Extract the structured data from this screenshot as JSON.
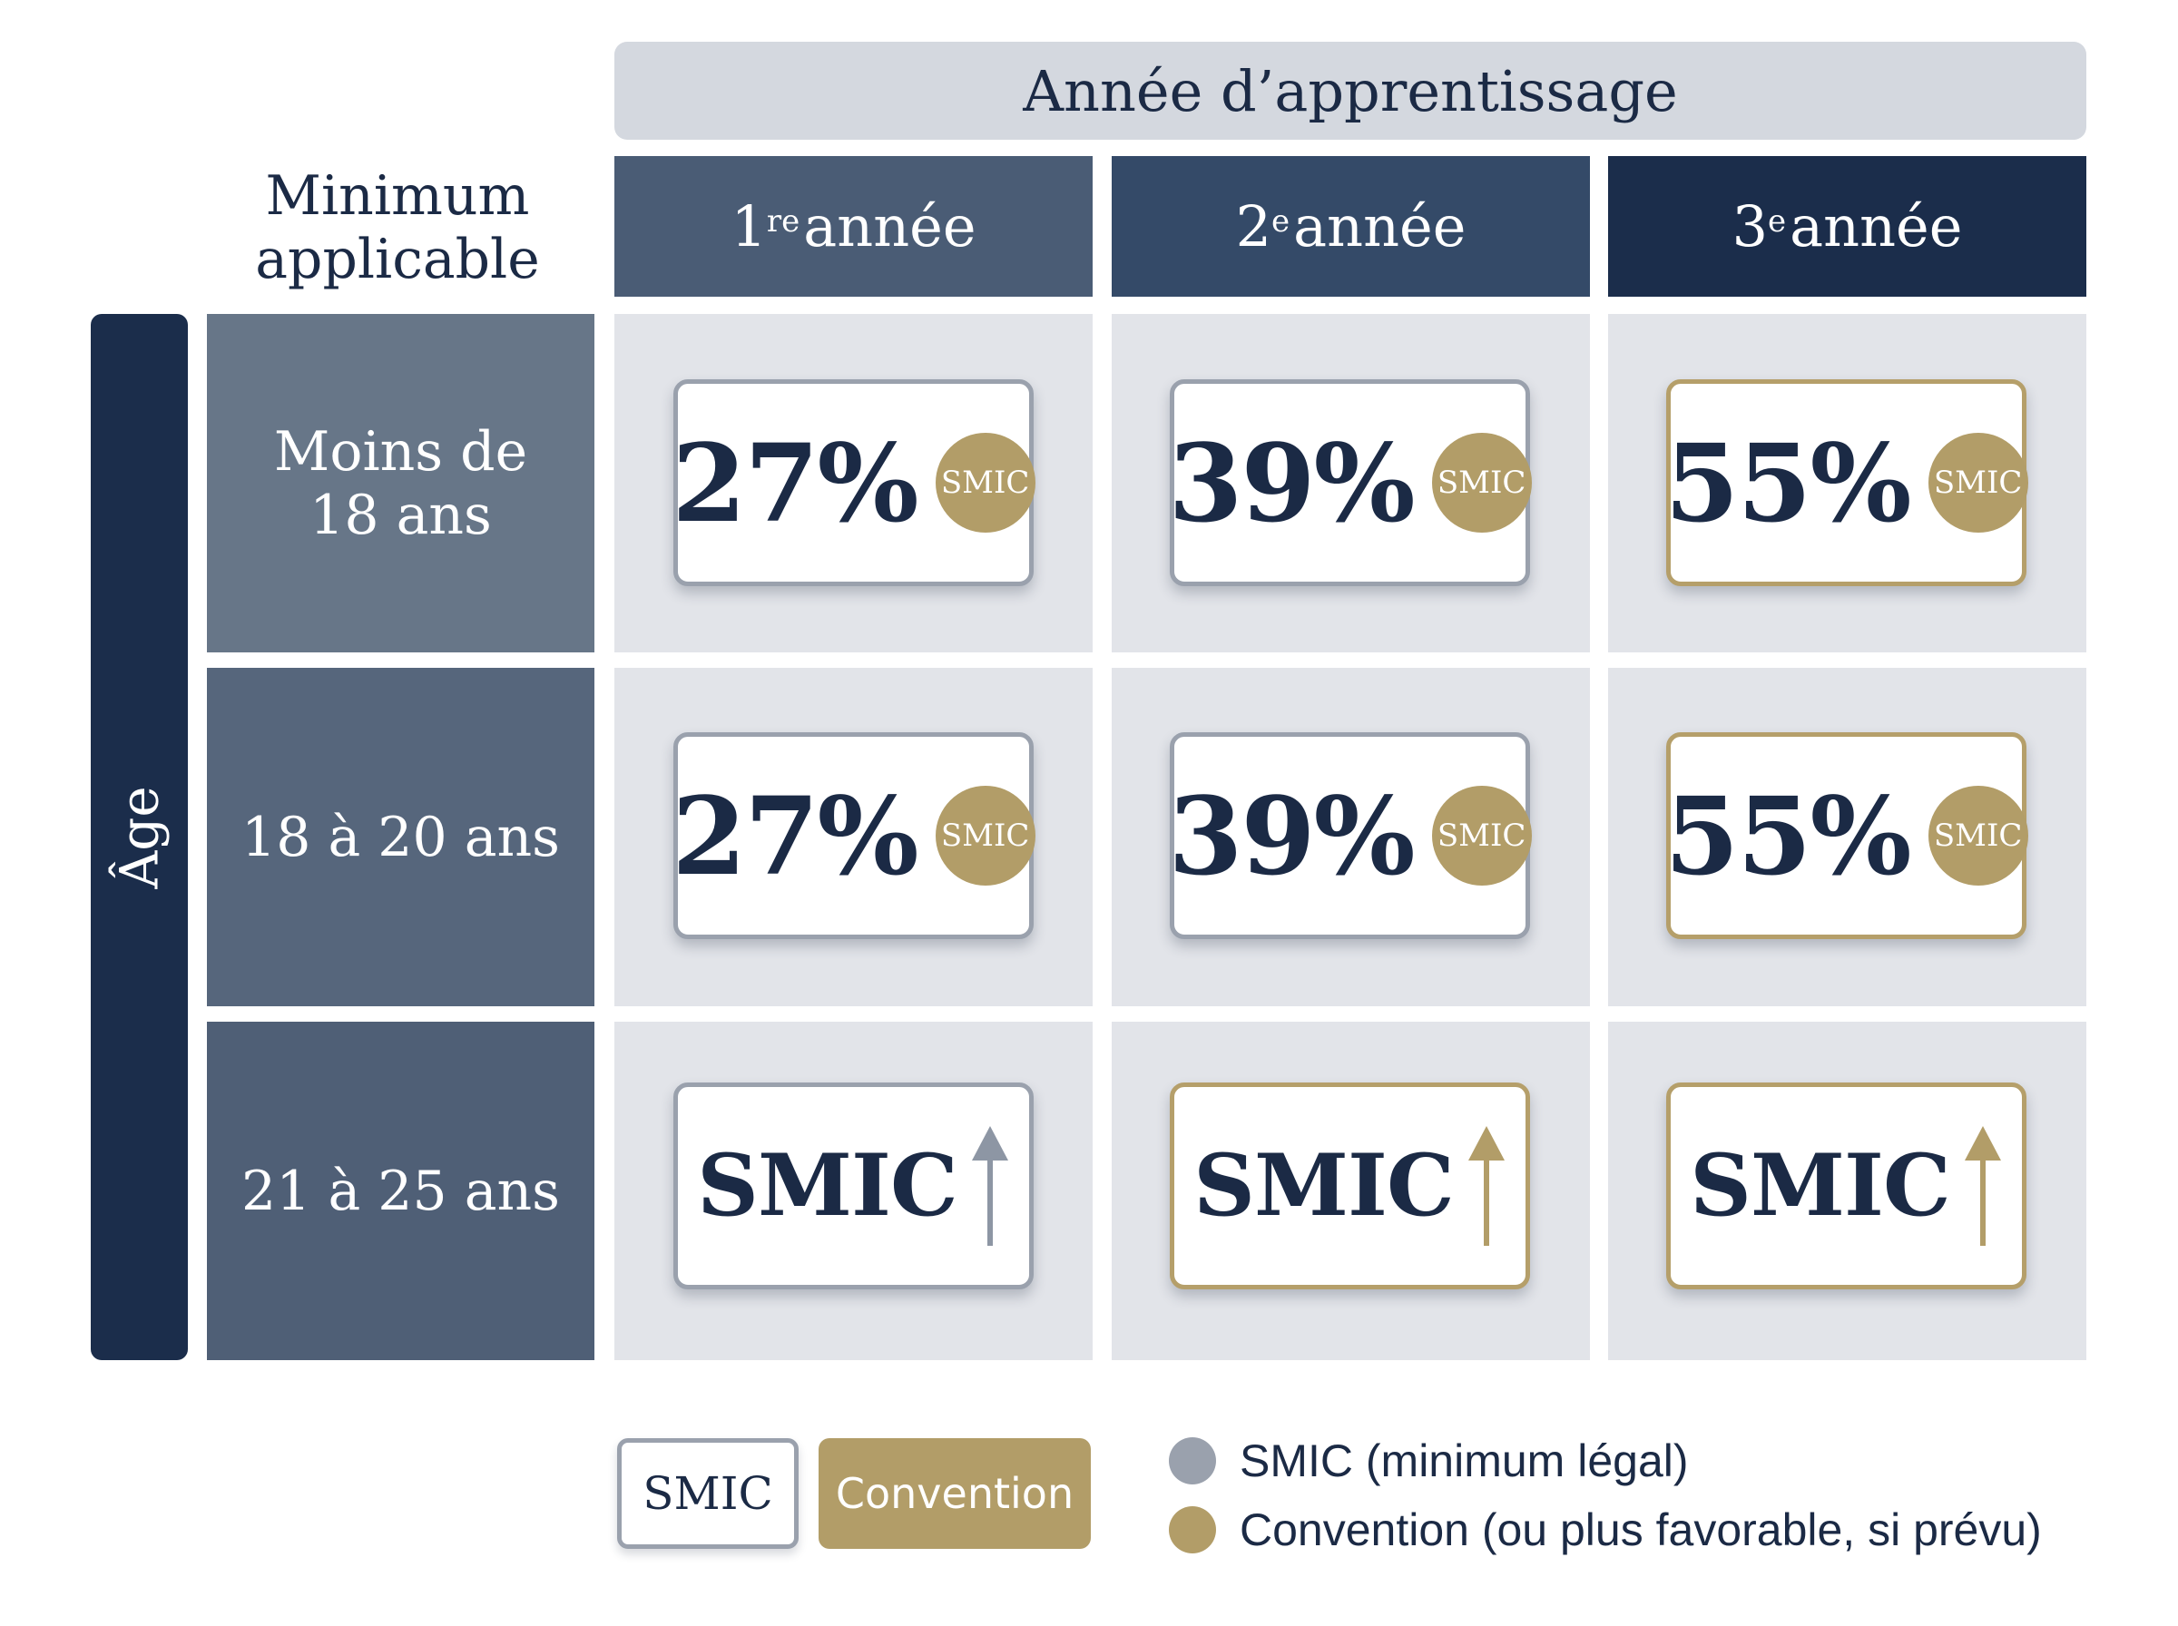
{
  "header": {
    "year_title": "Année d’apprentissage",
    "corner_title_line1": "Minimum",
    "corner_title_line2": "applicable",
    "columns": [
      {
        "num": "1",
        "sup": "re",
        "label": "année"
      },
      {
        "num": "2",
        "sup": "e",
        "label": "année"
      },
      {
        "num": "3",
        "sup": "e",
        "label": "année"
      }
    ]
  },
  "age_axis_label": "Âge",
  "rows": [
    {
      "label_line1": "Moins de",
      "label_line2": "18 ans",
      "cells": [
        {
          "value": "27%",
          "badge": "SMIC"
        },
        {
          "value": "39%",
          "badge": "SMIC"
        },
        {
          "value": "55%",
          "badge": "SMIC"
        }
      ]
    },
    {
      "label_line1": "18 à 20 ans",
      "label_line2": "",
      "cells": [
        {
          "value": "27%",
          "badge": "SMIC"
        },
        {
          "value": "39%",
          "badge": "SMIC"
        },
        {
          "value": "55%",
          "badge": "SMIC"
        }
      ]
    },
    {
      "label_line1": "21 à 25 ans",
      "label_line2": "",
      "cells": [
        {
          "value": "SMIC",
          "arrow": "up-arrow-icon",
          "arrow_color": "#8d96a4"
        },
        {
          "value": "SMIC",
          "arrow": "up-arrow-icon",
          "arrow_color": "#b29d68"
        },
        {
          "value": "SMIC",
          "arrow": "up-arrow-icon",
          "arrow_color": "#b29d68"
        }
      ]
    }
  ],
  "legend": {
    "box_smic": "SMIC",
    "box_convention": "Convention",
    "item_smic": "SMIC (minimum légal)",
    "item_convention": "Convention (ou plus favorable, si prévu)"
  },
  "colors": {
    "navy": "#1b2d4b",
    "gold": "#b29d68",
    "gray": "#9aa1ad",
    "cell_bg": "#e2e4e9"
  }
}
